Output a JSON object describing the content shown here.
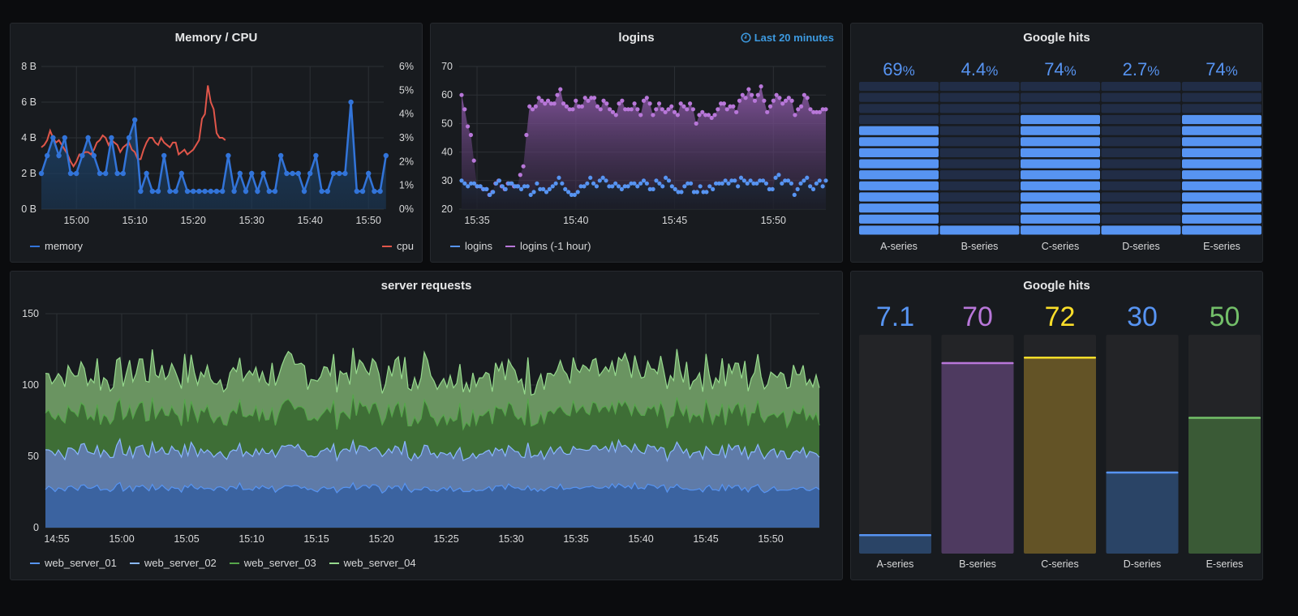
{
  "panels": {
    "memory_cpu": {
      "title": "Memory / CPU"
    },
    "logins": {
      "title": "logins",
      "time_info": "Last 20 minutes",
      "time_icon": "clock-icon"
    },
    "google_hits_gauge": {
      "title": "Google hits"
    },
    "server_requests": {
      "title": "server requests"
    },
    "google_hits_bars": {
      "title": "Google hits"
    }
  },
  "colors": {
    "memory": "#3274d9",
    "cpu": "#e0564a",
    "logins": "#5794f2",
    "logins_1h": "#b877d9",
    "ws1": "#5794f2",
    "ws2": "#8ab8ff",
    "ws3": "#56a64b",
    "ws4": "#96d98d",
    "gauge_on": "#5794f2",
    "gauge_off": "#22304a",
    "bar_A": "#5794f2",
    "bar_B": "#b877d9",
    "bar_C": "#fade2a",
    "bar_D": "#5794f2",
    "bar_E": "#73bf69"
  },
  "chart_data": [
    {
      "type": "line",
      "title": "Memory / CPU",
      "x_ticks": [
        "15:00",
        "15:10",
        "15:20",
        "15:30",
        "15:40",
        "15:50"
      ],
      "x_range_minutes": [
        -6,
        54
      ],
      "y_left_ticks": [
        "0 B",
        "2 B",
        "4 B",
        "6 B",
        "8 B"
      ],
      "y_left_range": [
        0,
        8
      ],
      "y_right_ticks": [
        "0%",
        "1%",
        "2%",
        "3%",
        "4%",
        "5%",
        "6%"
      ],
      "y_right_range": [
        0,
        6
      ],
      "legend": [
        "memory",
        "cpu"
      ],
      "series": [
        {
          "name": "memory",
          "axis": "left",
          "x_start_minutes": -6,
          "x_step_minutes": 1,
          "values": [
            2,
            3,
            4,
            3,
            4,
            2,
            2,
            3,
            4,
            3,
            2,
            2,
            4,
            2,
            2,
            4,
            5,
            1,
            2,
            1,
            1,
            3,
            1,
            1,
            2,
            1,
            1,
            1,
            1,
            1,
            1,
            1,
            3,
            1,
            2,
            1,
            2,
            1,
            2,
            1,
            1,
            3,
            2,
            2,
            2,
            1,
            2,
            3,
            1,
            1,
            2,
            2,
            2,
            6,
            1,
            1,
            2,
            1,
            1,
            3
          ]
        },
        {
          "name": "cpu",
          "axis": "right",
          "x_start_minutes": -6,
          "x_step_minutes": 0.5,
          "values": [
            2.6,
            2.7,
            2.9,
            3.3,
            3.0,
            2.8,
            2.9,
            2.7,
            2.5,
            2.3,
            2.0,
            1.8,
            2.0,
            2.3,
            2.3,
            2.4,
            2.4,
            2.3,
            2.5,
            2.8,
            2.9,
            3.1,
            3.0,
            2.7,
            2.9,
            2.8,
            2.7,
            2.4,
            2.6,
            2.7,
            2.8,
            2.5,
            2.4,
            2.1,
            2.1,
            2.5,
            2.8,
            3.0,
            3.0,
            2.8,
            2.7,
            3.0,
            2.8,
            2.7,
            2.6,
            2.8,
            2.8,
            2.3,
            2.4,
            2.5,
            2.3,
            2.4,
            2.5,
            2.7,
            2.9,
            3.8,
            4.0,
            5.2,
            4.5,
            4.2,
            3.2,
            3.0,
            3.0,
            2.9
          ]
        }
      ]
    },
    {
      "type": "scatter",
      "title": "logins",
      "x_ticks": [
        "15:35",
        "15:40",
        "15:45",
        "15:50"
      ],
      "y_ticks": [
        "20",
        "30",
        "40",
        "50",
        "60",
        "70"
      ],
      "y_range": [
        20,
        70
      ],
      "legend": [
        "logins",
        "logins (-1 hour)"
      ],
      "series": [
        {
          "name": "logins",
          "values": [
            30,
            29,
            28,
            29,
            29,
            28,
            28,
            27,
            27,
            25,
            26,
            29,
            30,
            28,
            27,
            29,
            29,
            28,
            28,
            27,
            28,
            28,
            25,
            26,
            29,
            27,
            27,
            26,
            27,
            28,
            29,
            31,
            29,
            27,
            26,
            25,
            25,
            26,
            28,
            28,
            29,
            31,
            29,
            28,
            30,
            31,
            30,
            28,
            28,
            29,
            28,
            27,
            28,
            28,
            29,
            29,
            28,
            29,
            30,
            29,
            27,
            27,
            30,
            29,
            28,
            31,
            30,
            28,
            27,
            26,
            26,
            28,
            29,
            29,
            26,
            26,
            28,
            26,
            26,
            28,
            27,
            29,
            29,
            29,
            30,
            29,
            30,
            30,
            28,
            31,
            30,
            29,
            30,
            29,
            29,
            30,
            30,
            29,
            27,
            27,
            31,
            32,
            29,
            30,
            30,
            29,
            25,
            27,
            29,
            30,
            31,
            28,
            27,
            29,
            30,
            28,
            30
          ]
        },
        {
          "name": "logins (-1 hour)",
          "values": [
            60,
            55,
            49,
            46,
            37,
            28,
            28,
            27,
            27,
            25,
            26,
            29,
            30,
            28,
            27,
            29,
            29,
            28,
            28,
            32,
            35,
            46,
            56,
            55,
            56,
            59,
            58,
            57,
            58,
            57,
            57,
            60,
            62,
            57,
            56,
            55,
            55,
            58,
            56,
            56,
            59,
            58,
            59,
            59,
            56,
            55,
            58,
            57,
            55,
            54,
            53,
            57,
            58,
            55,
            55,
            55,
            57,
            55,
            53,
            58,
            59,
            57,
            53,
            55,
            57,
            55,
            54,
            55,
            56,
            54,
            53,
            57,
            56,
            55,
            57,
            55,
            50,
            53,
            54,
            53,
            53,
            52,
            53,
            55,
            57,
            57,
            55,
            56,
            56,
            54,
            58,
            60,
            59,
            62,
            60,
            58,
            60,
            63,
            58,
            54,
            56,
            58,
            60,
            59,
            57,
            58,
            59,
            58,
            53,
            55,
            56,
            60,
            59,
            55,
            54,
            54,
            54,
            55,
            55
          ]
        }
      ]
    },
    {
      "type": "bar",
      "subtype": "bar-gauge-lcd",
      "title": "Google hits",
      "categories": [
        "A-series",
        "B-series",
        "C-series",
        "D-series",
        "E-series"
      ],
      "values": [
        69,
        4.4,
        74,
        2.7,
        74
      ],
      "value_labels": [
        "69",
        "4.4",
        "74",
        "2.7",
        "74"
      ],
      "unit": "%",
      "ylim": [
        0,
        100
      ]
    },
    {
      "type": "area",
      "stacked": true,
      "title": "server requests",
      "x_ticks": [
        "14:55",
        "15:00",
        "15:05",
        "15:10",
        "15:15",
        "15:20",
        "15:25",
        "15:30",
        "15:35",
        "15:40",
        "15:45",
        "15:50"
      ],
      "y_ticks": [
        "0",
        "50",
        "100",
        "150"
      ],
      "y_range": [
        0,
        150
      ],
      "legend": [
        "web_server_01",
        "web_server_02",
        "web_server_03",
        "web_server_04"
      ],
      "series": [
        {
          "name": "web_server_01",
          "mean": 28,
          "noise": 2.2
        },
        {
          "name": "web_server_02",
          "mean": 26,
          "noise": 2.8
        },
        {
          "name": "web_server_03",
          "mean": 27,
          "noise": 3.5
        },
        {
          "name": "web_server_04",
          "mean": 28,
          "noise": 4.0
        }
      ]
    },
    {
      "type": "bar",
      "title": "Google hits",
      "categories": [
        "A-series",
        "B-series",
        "C-series",
        "D-series",
        "E-series"
      ],
      "values": [
        7.1,
        70,
        72,
        30,
        50
      ],
      "value_labels": [
        "7.1",
        "70",
        "72",
        "30",
        "50"
      ],
      "ylim": [
        0,
        80
      ]
    }
  ]
}
